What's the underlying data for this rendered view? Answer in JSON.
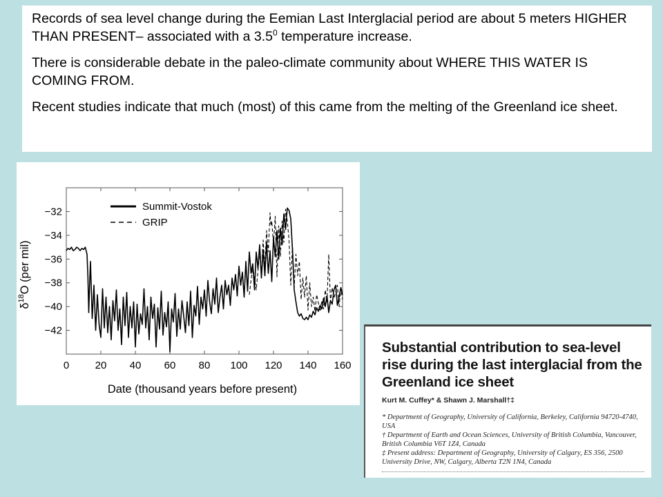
{
  "slide_text": {
    "p1_before": "Records of sea level change during the Eemian Last Interglacial period are about 5 meters HIGHER THAN PRESENT– associated with a 3.5",
    "p1_sup": "0",
    "p1_after": " temperature increase.",
    "p2": "There is considerable debate in the paleo-climate community about WHERE THIS WATER IS COMING FROM.",
    "p3": "Recent studies indicate that much (most) of this came from the melting of the Greenland ice sheet."
  },
  "chart_data": {
    "type": "line",
    "xlabel": "Date (thousand years before present)",
    "ylabel_delta": "δ",
    "ylabel_sup": "18",
    "ylabel_rest": "O (per mil)",
    "xlim": [
      0,
      160
    ],
    "ylim": [
      -44,
      -30
    ],
    "x_ticks": [
      0,
      20,
      40,
      60,
      80,
      100,
      120,
      140,
      160
    ],
    "y_ticks": [
      -32,
      -34,
      -36,
      -38,
      -40,
      -42
    ],
    "y_tick_labels": [
      "−32",
      "−34",
      "−36",
      "−38",
      "−40",
      "−42"
    ],
    "legend_position": "top-left",
    "series": [
      {
        "name": "Summit-Vostok",
        "style": "solid",
        "x": [
          0,
          1,
          2,
          3,
          4,
          5,
          6,
          7,
          8,
          9,
          10,
          11,
          12,
          12.5,
          13,
          13.5,
          14,
          15,
          16,
          17,
          18,
          19,
          20,
          21,
          22,
          23,
          24,
          25,
          26,
          27,
          28,
          29,
          30,
          31,
          32,
          33,
          34,
          35,
          36,
          37,
          38,
          39,
          40,
          41,
          42,
          43,
          44,
          45,
          46,
          47,
          48,
          49,
          50,
          51,
          52,
          53,
          54,
          55,
          56,
          57,
          58,
          59,
          60,
          61,
          62,
          63,
          64,
          65,
          66,
          67,
          68,
          69,
          70,
          71,
          72,
          73,
          74,
          75,
          76,
          77,
          78,
          79,
          80,
          81,
          82,
          83,
          84,
          85,
          86,
          87,
          88,
          89,
          90,
          91,
          92,
          93,
          94,
          95,
          96,
          97,
          98,
          99,
          100,
          101,
          102,
          103,
          104,
          105,
          106,
          107,
          108,
          109,
          110,
          111,
          112,
          113,
          114,
          115,
          116,
          117,
          118,
          119,
          120,
          121,
          122,
          123,
          124,
          125,
          126,
          127,
          128,
          129,
          130,
          131,
          132,
          133,
          134,
          135,
          136,
          137,
          138,
          139,
          140,
          141,
          142,
          143,
          144,
          145,
          146,
          147,
          148,
          149,
          150,
          151,
          152,
          153,
          154,
          155,
          156,
          157,
          158,
          159,
          160
        ],
        "y": [
          -35.3,
          -35.1,
          -35.2,
          -35,
          -35.3,
          -35.2,
          -35,
          -35.1,
          -35.3,
          -35.1,
          -35.2,
          -35,
          -35.6,
          -37.5,
          -40.5,
          -38,
          -36.2,
          -41,
          -38.2,
          -42,
          -39,
          -41.5,
          -42.6,
          -38.5,
          -41.8,
          -39.2,
          -42.2,
          -40,
          -42.8,
          -39.5,
          -41.2,
          -38.6,
          -42,
          -40.2,
          -43.2,
          -39.2,
          -41.6,
          -38.8,
          -42.6,
          -40,
          -41.8,
          -39.6,
          -43.4,
          -39.8,
          -42.3,
          -40.6,
          -41.5,
          -38.5,
          -41.8,
          -40,
          -42.8,
          -39.2,
          -41,
          -39.8,
          -43.4,
          -40.1,
          -41.9,
          -38.7,
          -42.4,
          -40.5,
          -41.7,
          -39.6,
          -43.8,
          -40.2,
          -41.3,
          -38.9,
          -42.5,
          -40.2,
          -41.9,
          -39.5,
          -40.8,
          -42.2,
          -39.6,
          -41.6,
          -38.7,
          -42.6,
          -39.9,
          -40.8,
          -38.3,
          -41.5,
          -39.2,
          -40.2,
          -38.6,
          -40.8,
          -37.8,
          -39.6,
          -40.6,
          -38.5,
          -39.8,
          -37.6,
          -40.5,
          -39.2,
          -38.2,
          -40.2,
          -37.8,
          -39,
          -38.2,
          -39.9,
          -37.6,
          -38.6,
          -37.3,
          -39.1,
          -36.6,
          -38.2,
          -37.1,
          -39.2,
          -36.2,
          -38.7,
          -35.4,
          -37.2,
          -36.4,
          -38.6,
          -35.4,
          -36.8,
          -34.8,
          -37.6,
          -35.2,
          -37.4,
          -34.6,
          -37.2,
          -35.3,
          -37.9,
          -34.2,
          -35.8,
          -33.6,
          -36,
          -33.4,
          -34.8,
          -32.2,
          -33.5,
          -31.7,
          -31.9,
          -32.6,
          -35.2,
          -38.6,
          -39.6,
          -40.5,
          -40.8,
          -40.6,
          -41,
          -41.1,
          -40.9,
          -41.1,
          -40.7,
          -40.9,
          -40.4,
          -40.7,
          -40.1,
          -40.4,
          -39.9,
          -40.2,
          -39.3,
          -40,
          -39.1,
          -40.5,
          -39.5,
          -39.8,
          -38.6,
          -38.2,
          -39.9,
          -39.2,
          -38.4,
          -39
        ]
      },
      {
        "name": "GRIP",
        "style": "dashed",
        "x": [
          106,
          108,
          110,
          112,
          113,
          114,
          115,
          116,
          117,
          118,
          118.5,
          119,
          120,
          121,
          122,
          123,
          124,
          125,
          126,
          127,
          128,
          129,
          130,
          131,
          132,
          133,
          134,
          135,
          136,
          137,
          138,
          139,
          140,
          141,
          142,
          143,
          144,
          145,
          146,
          147,
          148,
          149,
          150,
          151,
          152,
          153,
          154,
          155,
          156,
          157,
          158,
          159,
          160
        ],
        "y": [
          -39,
          -36.6,
          -38.6,
          -35.4,
          -37.4,
          -34.4,
          -36.6,
          -33.6,
          -35.4,
          -32.1,
          -33.2,
          -32.8,
          -34.8,
          -32.4,
          -37.5,
          -33.2,
          -35.8,
          -32.8,
          -34.6,
          -31.8,
          -32.8,
          -34.4,
          -38.2,
          -34.8,
          -38.4,
          -35.6,
          -37.4,
          -36.2,
          -39.4,
          -37.6,
          -39.2,
          -37.4,
          -40.3,
          -38,
          -40,
          -39.2,
          -40.4,
          -39,
          -39.7,
          -40.4,
          -39.5,
          -40.2,
          -38.6,
          -39.6,
          -35.6,
          -39.6,
          -38.4,
          -39.3,
          -38.8,
          -38.2,
          -40,
          -38.5,
          -39.4
        ]
      }
    ]
  },
  "paper": {
    "title": "Substantial contribution to sea-level rise during the last interglacial from the Greenland ice sheet",
    "authors": "Kurt M. Cuffey* & Shawn J. Marshall†‡",
    "affiliations": [
      "* Department of Geography, University of California, Berkeley, California 94720-4740, USA",
      "† Department of Earth and Ocean Sciences, University of British Columbia, Vancouver, British Columbia V6T 1Z4, Canada",
      "‡ Present address: Department of Geography, University of Calgary, ES 356, 2500 University Drive, NW, Calgary, Alberta T2N 1N4, Canada"
    ]
  }
}
